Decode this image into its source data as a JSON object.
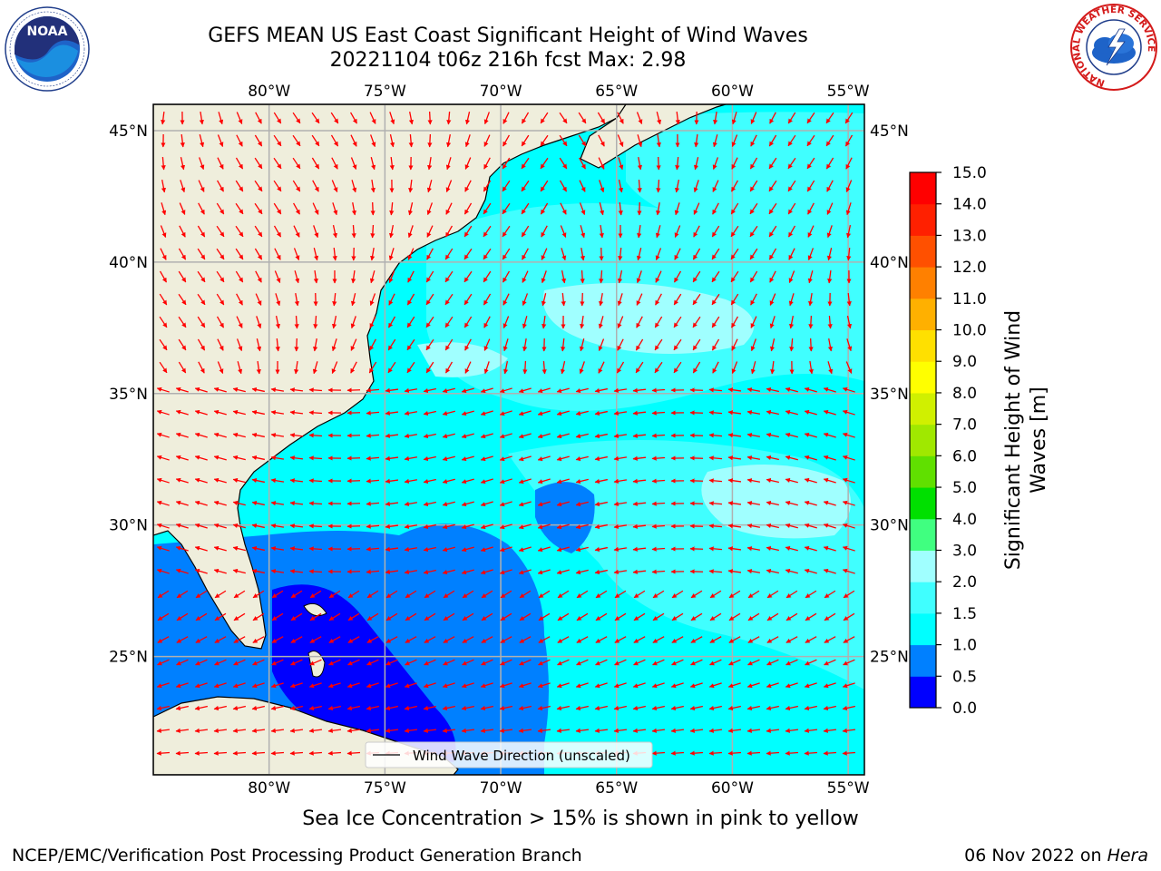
{
  "title": {
    "line1": "GEFS MEAN US East Coast Significant Height of Wind Waves",
    "line2": "20221104 t06z 216h fcst   Max: 2.98"
  },
  "map": {
    "lon_ticks": [
      "80°W",
      "75°W",
      "70°W",
      "65°W",
      "60°W",
      "55°W"
    ],
    "lat_ticks": [
      "45°N",
      "40°N",
      "35°N",
      "30°N",
      "25°N"
    ],
    "lon_values": [
      -80,
      -75,
      -70,
      -65,
      -60,
      -55
    ],
    "lat_values": [
      45,
      40,
      35,
      30,
      25
    ],
    "extent": {
      "lon": [
        -85,
        -54.3
      ],
      "lat": [
        20.5,
        46
      ]
    },
    "land_color": "#efeedc",
    "arrow_color": "#ff0000",
    "grid": true,
    "legend": {
      "label": "Wind Wave Direction (unscaled)",
      "position": "bottom-center"
    }
  },
  "colorbar": {
    "label_line1": "Significant Height of Wind",
    "label_line2": "Waves [m]",
    "ticks": [
      "0.0",
      "0.5",
      "1.0",
      "1.5",
      "2.0",
      "3.0",
      "4.0",
      "5.0",
      "6.0",
      "7.0",
      "8.0",
      "9.0",
      "10.0",
      "11.0",
      "12.0",
      "13.0",
      "14.0",
      "15.0"
    ],
    "colors": [
      "#0000ff",
      "#0080ff",
      "#00ffff",
      "#40ffff",
      "#a0ffff",
      "#40ff80",
      "#00e000",
      "#60e000",
      "#a0e800",
      "#d0f000",
      "#ffff00",
      "#ffe000",
      "#ffb000",
      "#ff8000",
      "#ff5000",
      "#ff2000",
      "#ff0000"
    ]
  },
  "footer": {
    "ice_note": "Sea Ice Concentration > 15% is shown in pink to yellow",
    "branch": "NCEP/EMC/Verification Post Processing Product Generation Branch",
    "date": "06 Nov 2022 on",
    "host": "Hera"
  },
  "logos": {
    "left": "NOAA",
    "right_ring": "NATIONAL WEATHER SERVICE"
  }
}
